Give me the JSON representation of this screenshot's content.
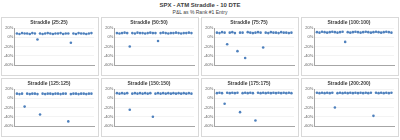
{
  "title": "SPX - ATM Straddle - 10 DTE",
  "subtitle": "P&L as % Rank #1 Entry",
  "chart_data": [
    {
      "type": "scatter",
      "title": "Straddle (25:25)",
      "color": "#4f81bd",
      "marker": "circle",
      "grid": true,
      "tick_labels": "y",
      "x": [
        1,
        2,
        3,
        4,
        5,
        6,
        7,
        8,
        9,
        10,
        11,
        12,
        13,
        14,
        15,
        16,
        17,
        18,
        19,
        20,
        21,
        22,
        23,
        24,
        25,
        26,
        27,
        28,
        29,
        30
      ],
      "values": [
        8,
        7,
        9,
        8,
        8,
        7,
        9,
        8,
        -5,
        8,
        7,
        8,
        9,
        8,
        7,
        8,
        8,
        9,
        7,
        8,
        8,
        -12,
        8,
        7,
        9,
        8,
        8,
        7,
        8,
        9
      ],
      "xlim": [
        0,
        31
      ],
      "ylim": [
        -60,
        20
      ],
      "yticks": [
        {
          "value": -60,
          "label": "-60%"
        },
        {
          "value": -40,
          "label": "-40%"
        },
        {
          "value": -20,
          "label": "-20%"
        },
        {
          "value": 0,
          "label": "0%"
        },
        {
          "value": 20,
          "label": "20%"
        }
      ]
    },
    {
      "type": "scatter",
      "title": "Straddle (50:50)",
      "color": "#4f81bd",
      "marker": "circle",
      "grid": true,
      "tick_labels": "y",
      "x": [
        1,
        2,
        3,
        4,
        5,
        6,
        7,
        8,
        9,
        10,
        11,
        12,
        13,
        14,
        15,
        16,
        17,
        18,
        19,
        20,
        21,
        22,
        23,
        24,
        25,
        26,
        27,
        28,
        29,
        30
      ],
      "values": [
        9,
        8,
        9,
        10,
        9,
        -20,
        9,
        8,
        10,
        9,
        9,
        8,
        9,
        10,
        9,
        9,
        -8,
        9,
        10,
        9,
        8,
        9,
        9,
        10,
        9,
        8,
        9,
        9,
        10,
        9
      ],
      "xlim": [
        0,
        31
      ],
      "ylim": [
        -60,
        20
      ],
      "yticks": [
        {
          "value": -60,
          "label": "-60%"
        },
        {
          "value": -40,
          "label": "-40%"
        },
        {
          "value": -20,
          "label": "-20%"
        },
        {
          "value": 0,
          "label": "0%"
        },
        {
          "value": 20,
          "label": "20%"
        }
      ]
    },
    {
      "type": "scatter",
      "title": "Straddle (75:75)",
      "color": "#4f81bd",
      "marker": "circle",
      "grid": true,
      "tick_labels": "y",
      "x": [
        1,
        2,
        3,
        4,
        5,
        6,
        7,
        8,
        9,
        10,
        11,
        12,
        13,
        14,
        15,
        16,
        17,
        18,
        19,
        20,
        21,
        22,
        23,
        24,
        25,
        26,
        27,
        28,
        29,
        30
      ],
      "values": [
        10,
        9,
        11,
        10,
        -15,
        10,
        11,
        9,
        -30,
        10,
        10,
        -45,
        11,
        10,
        9,
        10,
        11,
        10,
        -22,
        10,
        9,
        11,
        10,
        10,
        9,
        11,
        10,
        10,
        9,
        10
      ],
      "xlim": [
        0,
        31
      ],
      "ylim": [
        -60,
        20
      ],
      "yticks": [
        {
          "value": -60,
          "label": "-60%"
        },
        {
          "value": -40,
          "label": "-40%"
        },
        {
          "value": -20,
          "label": "-20%"
        },
        {
          "value": 0,
          "label": "0%"
        },
        {
          "value": 20,
          "label": "20%"
        }
      ]
    },
    {
      "type": "scatter",
      "title": "Straddle (100:100)",
      "color": "#4f81bd",
      "marker": "circle",
      "grid": true,
      "tick_labels": "y",
      "x": [
        1,
        2,
        3,
        4,
        5,
        6,
        7,
        8,
        9,
        10,
        11,
        12,
        13,
        14,
        15,
        16,
        17,
        18,
        19,
        20,
        21,
        22,
        23,
        24,
        25,
        26,
        27,
        28,
        29,
        30
      ],
      "values": [
        11,
        10,
        12,
        11,
        10,
        11,
        12,
        11,
        10,
        11,
        12,
        -10,
        11,
        10,
        11,
        12,
        11,
        10,
        11,
        12,
        11,
        10,
        11,
        12,
        11,
        10,
        11,
        12,
        11,
        10
      ],
      "xlim": [
        0,
        31
      ],
      "ylim": [
        -60,
        20
      ],
      "yticks": [
        {
          "value": -60,
          "label": "-60%"
        },
        {
          "value": -40,
          "label": "-40%"
        },
        {
          "value": -20,
          "label": "-20%"
        },
        {
          "value": 0,
          "label": "0%"
        },
        {
          "value": 20,
          "label": "20%"
        }
      ]
    },
    {
      "type": "scatter",
      "title": "Straddle (125:125)",
      "color": "#4f81bd",
      "marker": "circle",
      "grid": true,
      "tick_labels": "y",
      "x": [
        1,
        2,
        3,
        4,
        5,
        6,
        7,
        8,
        9,
        10,
        11,
        12,
        13,
        14,
        15,
        16,
        17,
        18,
        19,
        20,
        21,
        22,
        23,
        24,
        25,
        26,
        27,
        28,
        29,
        30
      ],
      "values": [
        10,
        9,
        10,
        -18,
        10,
        9,
        10,
        10,
        9,
        -35,
        10,
        9,
        10,
        10,
        9,
        10,
        10,
        9,
        10,
        10,
        -50,
        9,
        10,
        10,
        9,
        10,
        10,
        9,
        10,
        10
      ],
      "xlim": [
        0,
        31
      ],
      "ylim": [
        -60,
        20
      ],
      "yticks": [
        {
          "value": -60,
          "label": "-60%"
        },
        {
          "value": -40,
          "label": "-40%"
        },
        {
          "value": -20,
          "label": "-20%"
        },
        {
          "value": 0,
          "label": "0%"
        },
        {
          "value": 20,
          "label": "20%"
        }
      ]
    },
    {
      "type": "scatter",
      "title": "Straddle (150:150)",
      "color": "#4f81bd",
      "marker": "circle",
      "grid": true,
      "tick_labels": "y",
      "x": [
        1,
        2,
        3,
        4,
        5,
        6,
        7,
        8,
        9,
        10,
        11,
        12,
        13,
        14,
        15,
        16,
        17,
        18,
        19,
        20,
        21,
        22,
        23,
        24,
        25,
        26,
        27,
        28,
        29,
        30
      ],
      "values": [
        11,
        10,
        11,
        10,
        11,
        -25,
        10,
        11,
        10,
        11,
        10,
        11,
        10,
        11,
        -40,
        10,
        11,
        10,
        11,
        10,
        11,
        10,
        11,
        10,
        11,
        10,
        11,
        10,
        11,
        10
      ],
      "xlim": [
        0,
        31
      ],
      "ylim": [
        -60,
        20
      ],
      "yticks": [
        {
          "value": -60,
          "label": "-60%"
        },
        {
          "value": -40,
          "label": "-40%"
        },
        {
          "value": -20,
          "label": "-20%"
        },
        {
          "value": 0,
          "label": "0%"
        },
        {
          "value": 20,
          "label": "20%"
        }
      ]
    },
    {
      "type": "scatter",
      "title": "Straddle (175:175)",
      "color": "#4f81bd",
      "marker": "circle",
      "grid": true,
      "tick_labels": "y",
      "x": [
        1,
        2,
        3,
        4,
        5,
        6,
        7,
        8,
        9,
        10,
        11,
        12,
        13,
        14,
        15,
        16,
        17,
        18,
        19,
        20,
        21,
        22,
        23,
        24,
        25,
        26,
        27,
        28,
        29,
        30
      ],
      "values": [
        11,
        12,
        11,
        -12,
        12,
        11,
        12,
        11,
        12,
        -30,
        11,
        12,
        11,
        12,
        11,
        -48,
        12,
        11,
        12,
        11,
        12,
        11,
        12,
        11,
        12,
        11,
        12,
        11,
        12,
        11
      ],
      "xlim": [
        0,
        31
      ],
      "ylim": [
        -60,
        20
      ],
      "yticks": [
        {
          "value": -60,
          "label": "-60%"
        },
        {
          "value": -40,
          "label": "-40%"
        },
        {
          "value": -20,
          "label": "-20%"
        },
        {
          "value": 0,
          "label": "0%"
        },
        {
          "value": 20,
          "label": "20%"
        }
      ]
    },
    {
      "type": "scatter",
      "title": "Straddle (200:200)",
      "color": "#4f81bd",
      "marker": "circle",
      "grid": true,
      "tick_labels": "y",
      "x": [
        1,
        2,
        3,
        4,
        5,
        6,
        7,
        8,
        9,
        10,
        11,
        12,
        13,
        14,
        15,
        16,
        17,
        18,
        19,
        20,
        21,
        22,
        23,
        24,
        25,
        26,
        27,
        28,
        29,
        30
      ],
      "values": [
        12,
        11,
        12,
        11,
        12,
        11,
        12,
        -20,
        11,
        12,
        11,
        12,
        11,
        12,
        11,
        12,
        11,
        12,
        11,
        12,
        11,
        12,
        -38,
        12,
        11,
        12,
        11,
        12,
        11,
        12
      ],
      "xlim": [
        0,
        31
      ],
      "ylim": [
        -60,
        20
      ],
      "yticks": [
        {
          "value": -60,
          "label": "-60%"
        },
        {
          "value": -40,
          "label": "-40%"
        },
        {
          "value": -20,
          "label": "-20%"
        },
        {
          "value": 0,
          "label": "0%"
        },
        {
          "value": 20,
          "label": "20%"
        }
      ]
    }
  ]
}
